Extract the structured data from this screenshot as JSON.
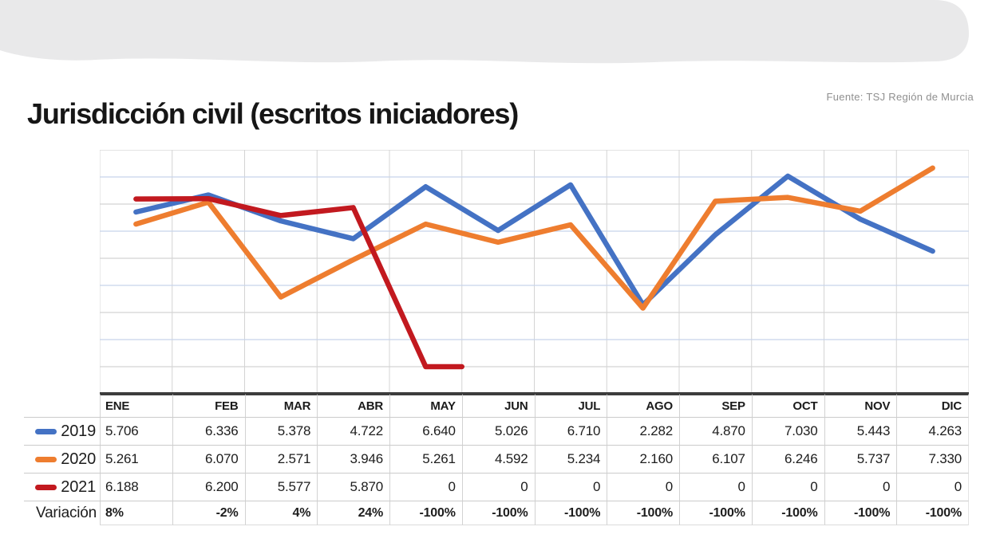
{
  "header": {
    "title": "Jurisdicción civil (escritos iniciadores)",
    "source": "Fuente: TSJ Región de Murcia"
  },
  "colors": {
    "series_2019": "#4472c4",
    "series_2020": "#ee7d2f",
    "series_2021": "#c2191f",
    "grid_gray": "#d4d4d4",
    "grid_blue": "#c7d4ea",
    "axis_dark": "#3c3c3c",
    "band_gray": "#e9e9ea",
    "table_border": "#cbcbcb"
  },
  "chart_data": {
    "type": "line",
    "title": "Jurisdicción civil (escritos iniciadores)",
    "categories": [
      "ENE",
      "FEB",
      "MAR",
      "ABR",
      "MAY",
      "JUN",
      "JUL",
      "AGO",
      "SEP",
      "OCT",
      "NOV",
      "DIC"
    ],
    "series": [
      {
        "name": "2019",
        "color_key": "series_2019",
        "values": [
          5706,
          6336,
          5378,
          4722,
          6640,
          5026,
          6710,
          2282,
          4870,
          7030,
          5443,
          4263
        ]
      },
      {
        "name": "2020",
        "color_key": "series_2020",
        "values": [
          5261,
          6070,
          2571,
          3946,
          5261,
          4592,
          5234,
          2160,
          6107,
          6246,
          5737,
          7330
        ]
      },
      {
        "name": "2021",
        "color_key": "series_2021",
        "values": [
          6188,
          6200,
          5577,
          5870,
          0,
          null,
          null,
          null,
          null,
          null,
          null,
          null
        ],
        "stub_to_boundary": true
      }
    ],
    "xlabel": "",
    "ylabel": "",
    "ylim": [
      -1000,
      8000
    ],
    "gridline_step": 1000,
    "y_tick_labels_visible": false,
    "grid": "both",
    "legend_position": "table-left"
  },
  "table": {
    "columns": [
      "ENE",
      "FEB",
      "MAR",
      "ABR",
      "MAY",
      "JUN",
      "JUL",
      "AGO",
      "SEP",
      "OCT",
      "NOV",
      "DIC"
    ],
    "rows": [
      {
        "label": "2019",
        "swatch_color_key": "series_2019",
        "values": [
          "5.706",
          "6.336",
          "5.378",
          "4.722",
          "6.640",
          "5.026",
          "6.710",
          "2.282",
          "4.870",
          "7.030",
          "5.443",
          "4.263"
        ]
      },
      {
        "label": "2020",
        "swatch_color_key": "series_2020",
        "values": [
          "5.261",
          "6.070",
          "2.571",
          "3.946",
          "5.261",
          "4.592",
          "5.234",
          "2.160",
          "6.107",
          "6.246",
          "5.737",
          "7.330"
        ]
      },
      {
        "label": "2021",
        "swatch_color_key": "series_2021",
        "values": [
          "6.188",
          "6.200",
          "5.577",
          "5.870",
          "0",
          "0",
          "0",
          "0",
          "0",
          "0",
          "0",
          "0"
        ]
      },
      {
        "label": "Variación",
        "swatch_color_key": null,
        "values": [
          "8%",
          "-2%",
          "4%",
          "24%",
          "-100%",
          "-100%",
          "-100%",
          "-100%",
          "-100%",
          "-100%",
          "-100%",
          "-100%"
        ]
      }
    ]
  }
}
